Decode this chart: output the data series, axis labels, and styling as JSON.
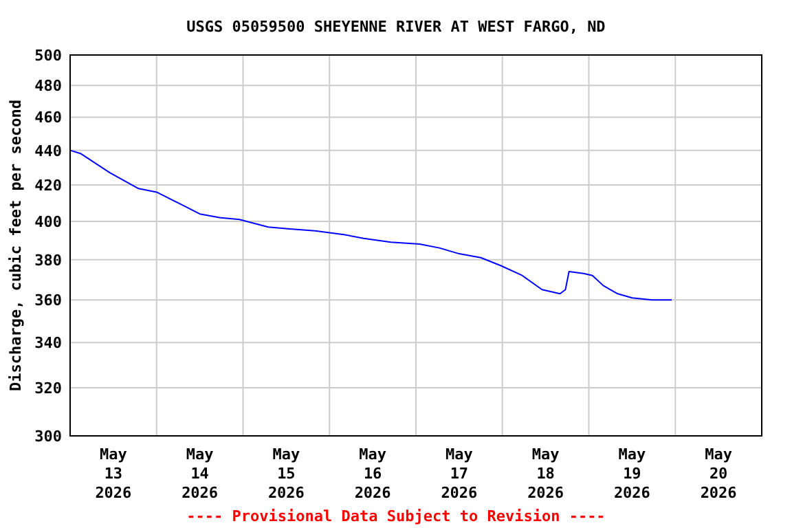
{
  "chart_data": {
    "type": "line",
    "title": "USGS 05059500 SHEYENNE RIVER AT WEST FARGO, ND",
    "ylabel": "Discharge, cubic feet per second",
    "annotations": [
      "---- Provisional Data Subject to Revision ----"
    ],
    "x": [
      "2026-05-13T00:00",
      "2026-05-13T03:00",
      "2026-05-13T11:00",
      "2026-05-13T19:00",
      "2026-05-14T00:00",
      "2026-05-14T06:00",
      "2026-05-14T12:00",
      "2026-05-14T17:30",
      "2026-05-14T23:00",
      "2026-05-15T07:00",
      "2026-05-15T13:00",
      "2026-05-15T20:00",
      "2026-05-16T04:00",
      "2026-05-16T09:30",
      "2026-05-16T17:00",
      "2026-05-17T01:00",
      "2026-05-17T06:30",
      "2026-05-17T12:00",
      "2026-05-17T18:00",
      "2026-05-17T23:30",
      "2026-05-18T05:30",
      "2026-05-18T11:00",
      "2026-05-18T16:00",
      "2026-05-18T17:30",
      "2026-05-18T18:30",
      "2026-05-18T22:30",
      "2026-05-19T01:00",
      "2026-05-19T04:00",
      "2026-05-19T08:00",
      "2026-05-19T12:00",
      "2026-05-19T17:30",
      "2026-05-19T23:00"
    ],
    "series": [
      {
        "color": "#0000ff",
        "values": [
          440,
          438,
          427,
          418,
          416,
          410,
          404,
          402,
          401,
          397,
          396,
          395,
          393,
          391,
          389,
          388,
          386,
          383,
          381,
          377,
          372,
          365,
          363,
          365,
          374,
          373,
          372,
          367,
          363,
          361,
          360,
          360
        ]
      }
    ],
    "log": true,
    "grid": true,
    "line_style": "solid",
    "ylim": [
      300,
      500
    ],
    "yticks": [
      300,
      320,
      340,
      360,
      380,
      400,
      420,
      440,
      460,
      480,
      500
    ],
    "xlim": [
      "2026-05-13T00:00",
      "2026-05-21T00:00"
    ],
    "xticks": [
      {
        "value": "2026-05-13T12:00",
        "label": "May\n13\n2026"
      },
      {
        "value": "2026-05-14T12:00",
        "label": "May\n14\n2026"
      },
      {
        "value": "2026-05-15T12:00",
        "label": "May\n15\n2026"
      },
      {
        "value": "2026-05-16T12:00",
        "label": "May\n16\n2026"
      },
      {
        "value": "2026-05-17T12:00",
        "label": "May\n17\n2026"
      },
      {
        "value": "2026-05-18T12:00",
        "label": "May\n18\n2026"
      },
      {
        "value": "2026-05-19T12:00",
        "label": "May\n19\n2026"
      },
      {
        "value": "2026-05-20T12:00",
        "label": "May\n20\n2026"
      },
      {
        "value": "2026-05-14T00:00",
        "label": null
      },
      {
        "value": "2026-05-15T00:00",
        "label": null
      },
      {
        "value": "2026-05-16T00:00",
        "label": null
      },
      {
        "value": "2026-05-17T00:00",
        "label": null
      },
      {
        "value": "2026-05-18T00:00",
        "label": null
      },
      {
        "value": "2026-05-19T00:00",
        "label": null
      },
      {
        "value": "2026-05-20T00:00",
        "label": null
      }
    ]
  }
}
